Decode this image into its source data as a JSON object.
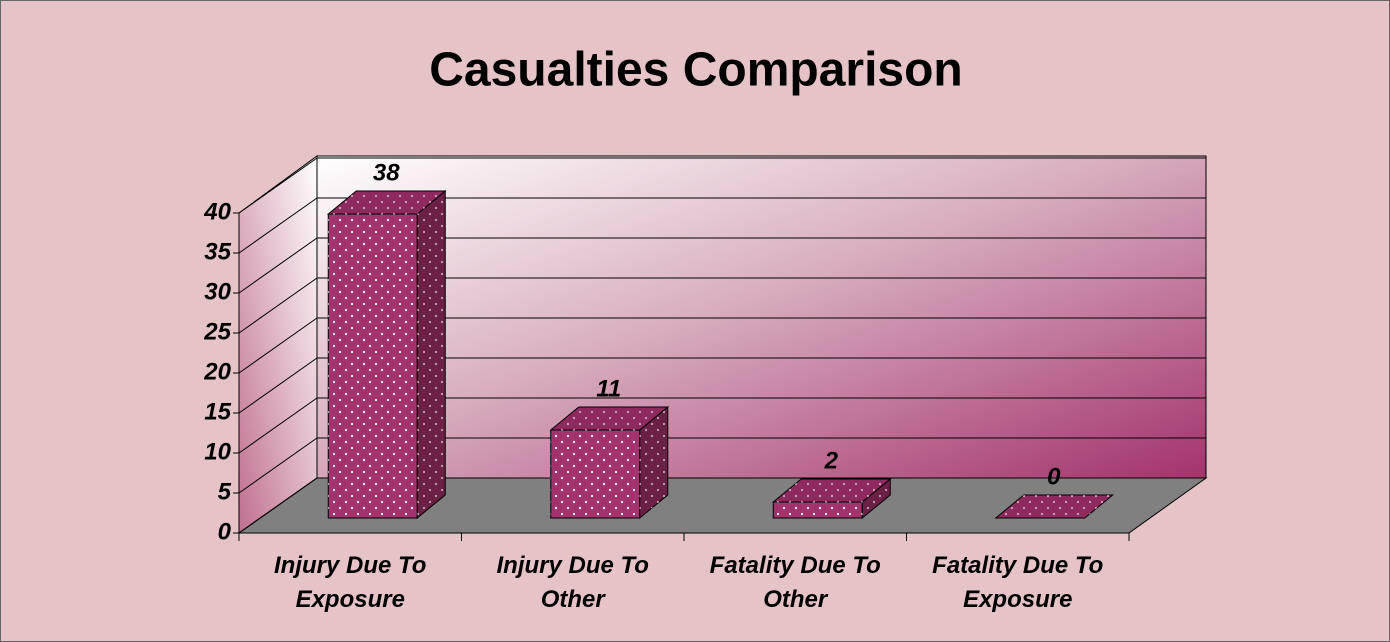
{
  "chart_data": {
    "type": "bar",
    "title": "Casualties Comparison",
    "categories": [
      "Injury Due To Exposure",
      "Injury Due To Other",
      "Fatality Due To Other",
      "Fatality Due To Exposure"
    ],
    "values": [
      38,
      11,
      2,
      0
    ],
    "color": "#a3336d",
    "ylim": [
      0,
      40
    ],
    "yticks": [
      0,
      5,
      10,
      15,
      20,
      25,
      30,
      35,
      40
    ],
    "grid": true
  }
}
